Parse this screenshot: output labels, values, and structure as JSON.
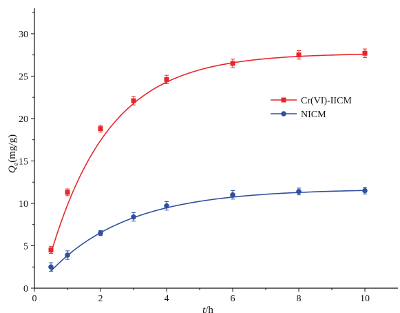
{
  "chart_data": {
    "type": "line",
    "title": "",
    "xlabel": "t/h",
    "xlabel_italic": "t",
    "xlabel_rest": "/h",
    "ylabel_main": "Q",
    "ylabel_sub": "e",
    "ylabel_unit": "(mg/g)",
    "xlim": [
      0,
      11
    ],
    "ylim": [
      0,
      33
    ],
    "xticks": [
      0,
      2,
      4,
      6,
      8,
      10
    ],
    "yticks": [
      0,
      5,
      10,
      15,
      20,
      25,
      30
    ],
    "grid": false,
    "legend_position": "right",
    "series": [
      {
        "name": "Cr(VI)-IICM",
        "color": "#e8262a",
        "marker": "square",
        "x": [
          0.5,
          1,
          2,
          3,
          4,
          6,
          8,
          10
        ],
        "y": [
          4.5,
          11.3,
          18.8,
          22.1,
          24.6,
          26.5,
          27.5,
          27.7
        ],
        "err": [
          0.4,
          0.4,
          0.4,
          0.5,
          0.5,
          0.5,
          0.5,
          0.5
        ],
        "fit_formula": "27.7*(1-exp(-0.553*(t-0.21)))"
      },
      {
        "name": "NICM",
        "color": "#2f4fa0",
        "marker": "circle",
        "x": [
          0.5,
          1,
          2,
          3,
          4,
          6,
          8,
          10
        ],
        "y": [
          2.5,
          3.9,
          6.5,
          8.4,
          9.7,
          11.0,
          11.4,
          11.5
        ],
        "err": [
          0.5,
          0.5,
          0.3,
          0.5,
          0.5,
          0.5,
          0.4,
          0.4
        ],
        "fit_formula": "11.7*(1-exp(-0.42*(t-0.05)))"
      }
    ]
  }
}
